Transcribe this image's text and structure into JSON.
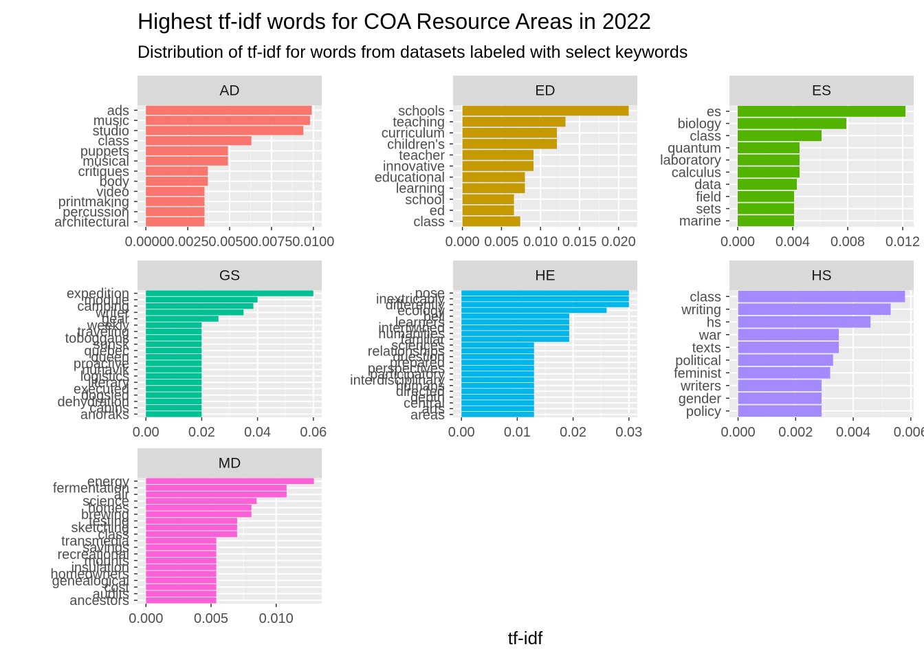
{
  "chart_data": {
    "type": "bar",
    "orientation": "horizontal",
    "title": "Highest tf-idf words for COA Resource Areas in 2022",
    "subtitle": "Distribution of tf-idf for words from datasets labeled with select keywords",
    "xlabel": "tf-idf",
    "ylabel": "",
    "grid": true,
    "legend": "none",
    "facets": [
      {
        "name": "AD",
        "color": "#F8766D",
        "xlim": [
          -0.0005,
          0.0105
        ],
        "ticks": [
          0,
          0.0025,
          0.005,
          0.0075,
          0.01
        ],
        "tick_labels": [
          "0.0000",
          "0.0025",
          "0.0050",
          "0.0075",
          "0.0100"
        ],
        "categories": [
          "ads",
          "music",
          "studio",
          "class",
          "puppets",
          "musical",
          "critiques",
          "body",
          "video",
          "printmaking",
          "percussion",
          "architectural"
        ],
        "values": [
          0.0099,
          0.0098,
          0.0094,
          0.0063,
          0.0049,
          0.0049,
          0.0037,
          0.0037,
          0.0035,
          0.0035,
          0.0035,
          0.0035
        ]
      },
      {
        "name": "ED",
        "color": "#C49A00",
        "xlim": [
          -0.0012,
          0.0224
        ],
        "ticks": [
          0,
          0.005,
          0.01,
          0.015,
          0.02
        ],
        "tick_labels": [
          "0.000",
          "0.005",
          "0.010",
          "0.015",
          "0.020"
        ],
        "categories": [
          "schools",
          "teaching",
          "curriculum",
          "children's",
          "teacher",
          "innovative",
          "educational",
          "learning",
          "school",
          "ed",
          "class"
        ],
        "values": [
          0.0213,
          0.0132,
          0.0121,
          0.0121,
          0.0091,
          0.0091,
          0.008,
          0.008,
          0.0066,
          0.0066,
          0.0074
        ]
      },
      {
        "name": "ES",
        "color": "#53B400",
        "xlim": [
          -0.0006,
          0.0128
        ],
        "ticks": [
          0,
          0.004,
          0.008,
          0.012
        ],
        "tick_labels": [
          "0.000",
          "0.004",
          "0.008",
          "0.012"
        ],
        "categories": [
          "es",
          "biology",
          "class",
          "quantum",
          "laboratory",
          "calculus",
          "data",
          "field",
          "sets",
          "marine"
        ],
        "values": [
          0.0122,
          0.0079,
          0.0061,
          0.0045,
          0.0045,
          0.0045,
          0.0043,
          0.0041,
          0.0041,
          0.0041
        ]
      },
      {
        "name": "GS",
        "color": "#00C094",
        "xlim": [
          -0.003,
          0.063
        ],
        "ticks": [
          0,
          0.02,
          0.04,
          0.06
        ],
        "tick_labels": [
          "0.00",
          "0.02",
          "0.04",
          "0.06"
        ],
        "categories": [
          "expedition",
          "module",
          "camping",
          "writer",
          "gear",
          "weekly",
          "traveling",
          "toboggans",
          "sunsk",
          "quebec",
          "queen",
          "proactive",
          "nunavik",
          "logistics",
          "literary",
          "executed",
          "dogsled",
          "dehydration",
          "cabins",
          "anoraks"
        ],
        "values": [
          0.06,
          0.04,
          0.0385,
          0.035,
          0.026,
          0.02,
          0.02,
          0.02,
          0.02,
          0.02,
          0.02,
          0.02,
          0.02,
          0.02,
          0.02,
          0.02,
          0.02,
          0.02,
          0.02,
          0.02
        ]
      },
      {
        "name": "HE",
        "color": "#00B6EB",
        "xlim": [
          -0.0015,
          0.0315
        ],
        "ticks": [
          0,
          0.01,
          0.02,
          0.03
        ],
        "tick_labels": [
          "0.00",
          "0.01",
          "0.02",
          "0.03"
        ],
        "categories": [
          "pose",
          "inextricably",
          "differently",
          "ecology",
          "bell",
          "learners",
          "intertwined",
          "humanities",
          "familiar",
          "sciences",
          "relationships",
          "question",
          "prepared",
          "perspectives",
          "participatory",
          "interdisciplinary",
          "humans",
          "directed",
          "depth",
          "central",
          "arts",
          "areas"
        ],
        "values": [
          0.03,
          0.03,
          0.03,
          0.026,
          0.0193,
          0.0193,
          0.0193,
          0.0193,
          0.0193,
          0.013,
          0.013,
          0.013,
          0.013,
          0.013,
          0.013,
          0.013,
          0.013,
          0.013,
          0.013,
          0.013,
          0.013,
          0.013
        ]
      },
      {
        "name": "HS",
        "color": "#A58AFF",
        "xlim": [
          -0.0003,
          0.0061
        ],
        "ticks": [
          0,
          0.002,
          0.004,
          0.006
        ],
        "tick_labels": [
          "0.000",
          "0.002",
          "0.004",
          "0.006"
        ],
        "categories": [
          "class",
          "writing",
          "hs",
          "war",
          "texts",
          "political",
          "feminist",
          "writers",
          "gender",
          "policy"
        ],
        "values": [
          0.0058,
          0.0053,
          0.0046,
          0.0035,
          0.0035,
          0.0033,
          0.0032,
          0.0029,
          0.0029,
          0.0029
        ]
      },
      {
        "name": "MD",
        "color": "#FB61D7",
        "xlim": [
          -0.00065,
          0.0135
        ],
        "ticks": [
          0,
          0.005,
          0.01
        ],
        "tick_labels": [
          "0.000",
          "0.005",
          "0.010"
        ],
        "categories": [
          "energy",
          "fermentation",
          "air",
          "science",
          "homes",
          "brewing",
          "testing",
          "sketching",
          "class",
          "transmedia",
          "savings",
          "recreational",
          "mounts",
          "insulation",
          "homeowners",
          "genealogical",
          "cost",
          "audits",
          "ancestors"
        ],
        "values": [
          0.0129,
          0.0108,
          0.0108,
          0.0085,
          0.0081,
          0.0081,
          0.007,
          0.007,
          0.007,
          0.0054,
          0.0054,
          0.0054,
          0.0054,
          0.0054,
          0.0054,
          0.0054,
          0.0054,
          0.0054,
          0.0054
        ]
      }
    ]
  }
}
